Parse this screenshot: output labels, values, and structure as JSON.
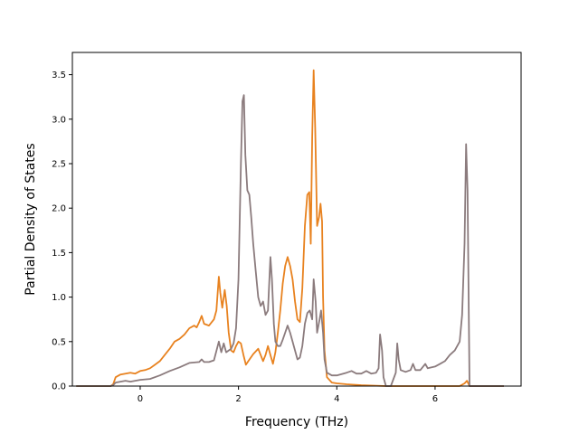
{
  "chart_data": {
    "type": "line",
    "title": "",
    "xlabel": "Frequency (THz)",
    "ylabel": "Partial Density of States",
    "xlim": [
      -1.38,
      7.75
    ],
    "ylim": [
      0,
      3.75
    ],
    "xticks": [
      0,
      2,
      4,
      6
    ],
    "xtick_labels": [
      "0",
      "2",
      "4",
      "6"
    ],
    "yticks": [
      0.0,
      0.5,
      1.0,
      1.5,
      2.0,
      2.5,
      3.0,
      3.5
    ],
    "ytick_labels": [
      "0.0",
      "0.5",
      "1.0",
      "1.5",
      "2.0",
      "2.5",
      "3.0",
      "3.5"
    ],
    "grid": false,
    "legend": "none",
    "series": [
      {
        "color": "#e8821f",
        "points": [
          [
            -1.3,
            0
          ],
          [
            -0.6,
            0
          ],
          [
            -0.55,
            0.02
          ],
          [
            -0.5,
            0.1
          ],
          [
            -0.4,
            0.13
          ],
          [
            -0.3,
            0.14
          ],
          [
            -0.2,
            0.15
          ],
          [
            -0.1,
            0.14
          ],
          [
            0.0,
            0.17
          ],
          [
            0.1,
            0.18
          ],
          [
            0.2,
            0.2
          ],
          [
            0.3,
            0.24
          ],
          [
            0.4,
            0.28
          ],
          [
            0.5,
            0.35
          ],
          [
            0.6,
            0.42
          ],
          [
            0.7,
            0.5
          ],
          [
            0.8,
            0.53
          ],
          [
            0.9,
            0.58
          ],
          [
            1.0,
            0.65
          ],
          [
            1.1,
            0.68
          ],
          [
            1.15,
            0.66
          ],
          [
            1.2,
            0.72
          ],
          [
            1.25,
            0.79
          ],
          [
            1.3,
            0.7
          ],
          [
            1.4,
            0.68
          ],
          [
            1.5,
            0.75
          ],
          [
            1.55,
            0.85
          ],
          [
            1.6,
            1.23
          ],
          [
            1.63,
            1.05
          ],
          [
            1.67,
            0.88
          ],
          [
            1.72,
            1.08
          ],
          [
            1.76,
            0.9
          ],
          [
            1.8,
            0.6
          ],
          [
            1.85,
            0.4
          ],
          [
            1.9,
            0.38
          ],
          [
            1.95,
            0.45
          ],
          [
            2.0,
            0.5
          ],
          [
            2.05,
            0.48
          ],
          [
            2.1,
            0.35
          ],
          [
            2.15,
            0.24
          ],
          [
            2.2,
            0.28
          ],
          [
            2.3,
            0.36
          ],
          [
            2.4,
            0.42
          ],
          [
            2.45,
            0.35
          ],
          [
            2.5,
            0.28
          ],
          [
            2.55,
            0.35
          ],
          [
            2.6,
            0.45
          ],
          [
            2.65,
            0.35
          ],
          [
            2.7,
            0.25
          ],
          [
            2.75,
            0.38
          ],
          [
            2.8,
            0.6
          ],
          [
            2.85,
            0.85
          ],
          [
            2.9,
            1.15
          ],
          [
            2.95,
            1.35
          ],
          [
            3.0,
            1.45
          ],
          [
            3.05,
            1.35
          ],
          [
            3.1,
            1.2
          ],
          [
            3.15,
            0.95
          ],
          [
            3.2,
            0.75
          ],
          [
            3.25,
            0.72
          ],
          [
            3.3,
            1.1
          ],
          [
            3.35,
            1.8
          ],
          [
            3.4,
            2.15
          ],
          [
            3.44,
            2.18
          ],
          [
            3.47,
            1.6
          ],
          [
            3.5,
            2.8
          ],
          [
            3.53,
            3.55
          ],
          [
            3.56,
            2.9
          ],
          [
            3.6,
            1.8
          ],
          [
            3.64,
            1.9
          ],
          [
            3.67,
            2.05
          ],
          [
            3.7,
            1.85
          ],
          [
            3.72,
            1.0
          ],
          [
            3.75,
            0.4
          ],
          [
            3.8,
            0.1
          ],
          [
            3.9,
            0.04
          ],
          [
            4.0,
            0.03
          ],
          [
            4.2,
            0.02
          ],
          [
            4.5,
            0.01
          ],
          [
            5.0,
            0.0
          ],
          [
            6.5,
            0.0
          ],
          [
            6.6,
            0.03
          ],
          [
            6.65,
            0.06
          ],
          [
            6.7,
            0.0
          ],
          [
            7.4,
            0
          ]
        ]
      },
      {
        "color": "#8b7b7d",
        "points": [
          [
            -1.3,
            0
          ],
          [
            -0.6,
            0
          ],
          [
            -0.55,
            0.01
          ],
          [
            -0.5,
            0.04
          ],
          [
            -0.4,
            0.05
          ],
          [
            -0.3,
            0.06
          ],
          [
            -0.2,
            0.05
          ],
          [
            -0.1,
            0.06
          ],
          [
            0.0,
            0.07
          ],
          [
            0.2,
            0.08
          ],
          [
            0.4,
            0.12
          ],
          [
            0.6,
            0.17
          ],
          [
            0.8,
            0.21
          ],
          [
            1.0,
            0.26
          ],
          [
            1.2,
            0.27
          ],
          [
            1.25,
            0.3
          ],
          [
            1.3,
            0.27
          ],
          [
            1.4,
            0.27
          ],
          [
            1.5,
            0.29
          ],
          [
            1.6,
            0.5
          ],
          [
            1.65,
            0.38
          ],
          [
            1.7,
            0.48
          ],
          [
            1.75,
            0.38
          ],
          [
            1.8,
            0.4
          ],
          [
            1.85,
            0.42
          ],
          [
            1.9,
            0.48
          ],
          [
            1.95,
            0.65
          ],
          [
            2.0,
            1.2
          ],
          [
            2.05,
            2.5
          ],
          [
            2.08,
            3.2
          ],
          [
            2.11,
            3.27
          ],
          [
            2.14,
            2.6
          ],
          [
            2.18,
            2.2
          ],
          [
            2.22,
            2.15
          ],
          [
            2.26,
            1.9
          ],
          [
            2.3,
            1.6
          ],
          [
            2.35,
            1.3
          ],
          [
            2.4,
            1.0
          ],
          [
            2.45,
            0.9
          ],
          [
            2.5,
            0.95
          ],
          [
            2.55,
            0.8
          ],
          [
            2.6,
            0.85
          ],
          [
            2.65,
            1.45
          ],
          [
            2.68,
            1.2
          ],
          [
            2.72,
            0.7
          ],
          [
            2.75,
            0.5
          ],
          [
            2.8,
            0.45
          ],
          [
            2.85,
            0.45
          ],
          [
            2.9,
            0.52
          ],
          [
            2.95,
            0.6
          ],
          [
            3.0,
            0.68
          ],
          [
            3.05,
            0.6
          ],
          [
            3.1,
            0.5
          ],
          [
            3.15,
            0.4
          ],
          [
            3.2,
            0.3
          ],
          [
            3.25,
            0.32
          ],
          [
            3.3,
            0.45
          ],
          [
            3.35,
            0.7
          ],
          [
            3.4,
            0.82
          ],
          [
            3.45,
            0.85
          ],
          [
            3.5,
            0.75
          ],
          [
            3.53,
            1.2
          ],
          [
            3.57,
            0.95
          ],
          [
            3.6,
            0.6
          ],
          [
            3.65,
            0.75
          ],
          [
            3.68,
            0.85
          ],
          [
            3.72,
            0.6
          ],
          [
            3.75,
            0.3
          ],
          [
            3.8,
            0.15
          ],
          [
            3.9,
            0.12
          ],
          [
            4.0,
            0.12
          ],
          [
            4.2,
            0.15
          ],
          [
            4.3,
            0.17
          ],
          [
            4.4,
            0.14
          ],
          [
            4.5,
            0.14
          ],
          [
            4.6,
            0.17
          ],
          [
            4.7,
            0.14
          ],
          [
            4.8,
            0.15
          ],
          [
            4.85,
            0.2
          ],
          [
            4.88,
            0.58
          ],
          [
            4.92,
            0.4
          ],
          [
            4.95,
            0.1
          ],
          [
            5.0,
            0.0
          ],
          [
            5.1,
            0.0
          ],
          [
            5.2,
            0.15
          ],
          [
            5.23,
            0.48
          ],
          [
            5.26,
            0.3
          ],
          [
            5.3,
            0.18
          ],
          [
            5.4,
            0.16
          ],
          [
            5.5,
            0.18
          ],
          [
            5.55,
            0.25
          ],
          [
            5.6,
            0.18
          ],
          [
            5.7,
            0.18
          ],
          [
            5.8,
            0.25
          ],
          [
            5.85,
            0.2
          ],
          [
            6.0,
            0.22
          ],
          [
            6.1,
            0.25
          ],
          [
            6.2,
            0.28
          ],
          [
            6.3,
            0.35
          ],
          [
            6.4,
            0.4
          ],
          [
            6.5,
            0.5
          ],
          [
            6.55,
            0.8
          ],
          [
            6.6,
            1.6
          ],
          [
            6.63,
            2.72
          ],
          [
            6.66,
            2.2
          ],
          [
            6.7,
            0.0
          ],
          [
            7.4,
            0
          ]
        ]
      }
    ]
  }
}
